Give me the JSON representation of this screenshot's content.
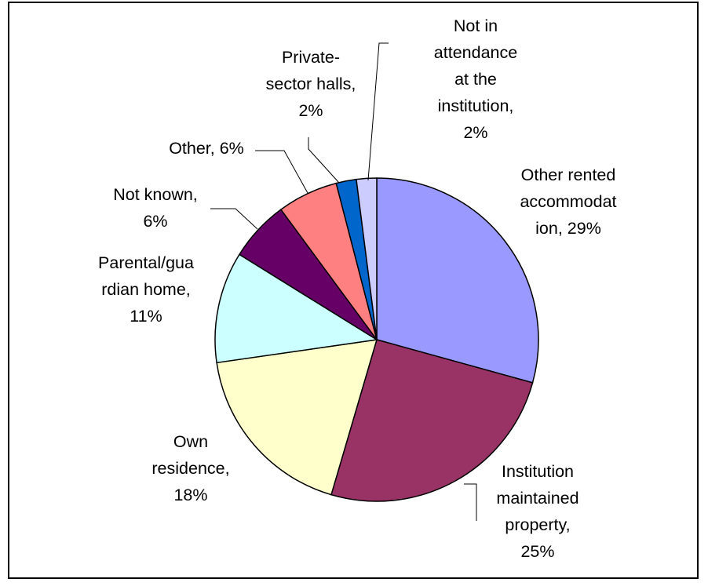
{
  "chart_data": {
    "type": "pie",
    "title": "",
    "slices": [
      {
        "label": "Other rented accommodation",
        "value": 29,
        "color": "#9999FF",
        "display": "29%"
      },
      {
        "label": "Institution maintained property",
        "value": 25,
        "color": "#993366",
        "display": "25%"
      },
      {
        "label": "Own residence",
        "value": 18,
        "color": "#FFFFCC",
        "display": "18%"
      },
      {
        "label": "Parental/guardian home",
        "value": 11,
        "color": "#CCFFFF",
        "display": "11%"
      },
      {
        "label": "Not known",
        "value": 6,
        "color": "#660066",
        "display": "6%"
      },
      {
        "label": "Other",
        "value": 6,
        "color": "#FF8080",
        "display": "6%"
      },
      {
        "label": "Private-sector halls",
        "value": 2,
        "color": "#0066CC",
        "display": "2%"
      },
      {
        "label": "Not in attendance at the institution",
        "value": 2,
        "color": "#CCCCFF",
        "display": "2%"
      }
    ],
    "data_labels": [
      [
        "Other rented",
        "accommodat",
        "ion, 29%"
      ],
      [
        "Institution",
        "maintained",
        "property,",
        "25%"
      ],
      [
        "Own",
        "residence,",
        "18%"
      ],
      [
        "Parental/gua",
        "rdian home,",
        "11%"
      ],
      [
        "Not known,",
        "6%"
      ],
      [
        "Other, 6%"
      ],
      [
        "Private-",
        "sector halls,",
        "2%"
      ],
      [
        "Not in",
        "attendance",
        "at the",
        "institution,",
        "2%"
      ]
    ]
  }
}
